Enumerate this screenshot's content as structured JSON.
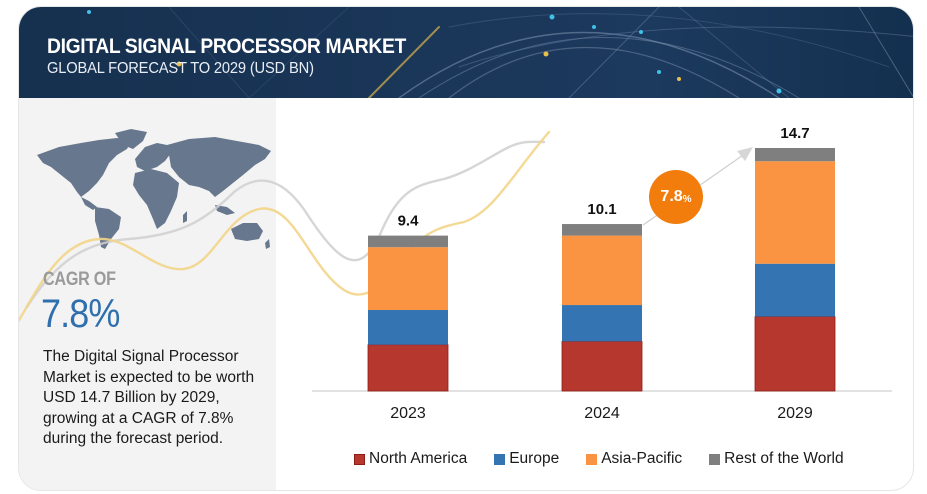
{
  "header": {
    "title": "DIGITAL SIGNAL PROCESSOR MARKET",
    "subtitle": "GLOBAL FORECAST TO 2029 (USD BN)"
  },
  "summary": {
    "cagr_label": "CAGR OF",
    "cagr_value": "7.8%",
    "description": "The Digital Signal Processor Market is expected to be worth USD 14.7 Billion by 2029, growing at a CAGR of 7.8% during the forecast period."
  },
  "growth_bubble": {
    "value": "7.8",
    "unit": "%"
  },
  "icons": {
    "map": "world-map-icon"
  },
  "colors": {
    "north_america": "#b5372e",
    "europe": "#3474b3",
    "asia_pacific": "#fa9442",
    "rest_of_world": "#7f7f7f",
    "header_bg": "#1a3658",
    "cagr_blue": "#2f6fad",
    "bubble": "#f27d0c"
  },
  "chart_data": {
    "type": "bar",
    "stacked": true,
    "title": "Digital Signal Processor Market — Global Forecast to 2029 (USD BN)",
    "xlabel": "",
    "ylabel": "",
    "categories": [
      "2023",
      "2024",
      "2029"
    ],
    "totals": [
      "9.4",
      "10.1",
      "14.7"
    ],
    "total_values": [
      9.4,
      10.1,
      14.7
    ],
    "series": [
      {
        "name": "North America",
        "color": "#b5372e",
        "values": [
          2.8,
          3.0,
          4.5
        ]
      },
      {
        "name": "Europe",
        "color": "#3474b3",
        "values": [
          2.1,
          2.2,
          3.2
        ]
      },
      {
        "name": "Asia-Pacific",
        "color": "#fa9442",
        "values": [
          3.8,
          4.2,
          6.2
        ]
      },
      {
        "name": "Rest of the World",
        "color": "#7f7f7f",
        "values": [
          0.7,
          0.7,
          0.8
        ]
      }
    ],
    "ylim": [
      0,
      14.7
    ],
    "grid": false,
    "legend_position": "bottom",
    "annotations": [
      "CAGR 7.8% arrow from 2024 to 2029"
    ]
  }
}
